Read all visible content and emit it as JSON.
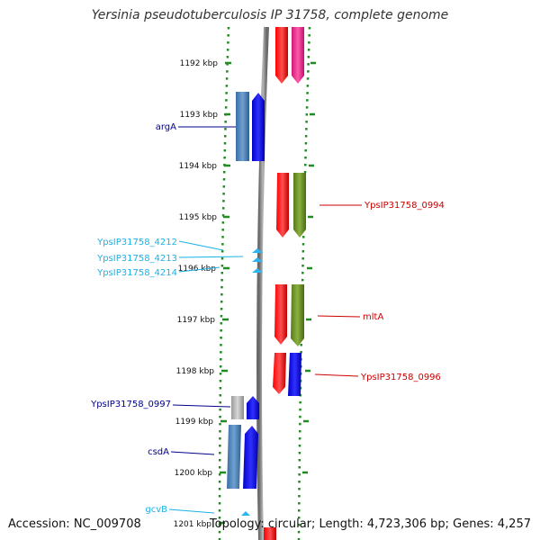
{
  "title": "Yersinia pseudotuberculosis IP 31758, complete genome",
  "footer": {
    "accession": "Accession: NC_009708",
    "topology": "Topology: circular; Length: 4,723,306 bp; Genes: 4,257"
  },
  "ticks": [
    {
      "label": "1192 kbp"
    },
    {
      "label": "1193 kbp"
    },
    {
      "label": "1194 kbp"
    },
    {
      "label": "1195 kbp"
    },
    {
      "label": "1196 kbp"
    },
    {
      "label": "1197 kbp"
    },
    {
      "label": "1198 kbp"
    },
    {
      "label": "1199 kbp"
    },
    {
      "label": "1200 kbp"
    },
    {
      "label": "1201 kbp"
    }
  ],
  "gene_labels": [
    {
      "text": "argA",
      "color": "#00008b"
    },
    {
      "text": "YpsIP31758_4212",
      "color": "#1ab2e6"
    },
    {
      "text": "YpsIP31758_4213",
      "color": "#1ab2e6"
    },
    {
      "text": "YpsIP31758_4214",
      "color": "#1ab2e6"
    },
    {
      "text": "YpsIP31758_0997",
      "color": "#00008b"
    },
    {
      "text": "csdA",
      "color": "#00008b"
    },
    {
      "text": "gcvB",
      "color": "#1ab2e6"
    },
    {
      "text": "YpsIP31758_0994",
      "color": "#cc0000"
    },
    {
      "text": "mltA",
      "color": "#cc0000"
    },
    {
      "text": "YpsIP31758_0996",
      "color": "#cc0000"
    }
  ],
  "colors": {
    "forward_cds": "#ff0000",
    "reverse_cds": "#0000ff",
    "reverse_cds_cog": "#4682b4",
    "forward_cds_cog_magenta": "#e6268c",
    "forward_cds_cog_olive": "#6b8e23",
    "hypothetical": "#b0b0b0",
    "rna": "#29b6f6",
    "backbone": "#888888",
    "dotted_ring": "#228b22"
  }
}
